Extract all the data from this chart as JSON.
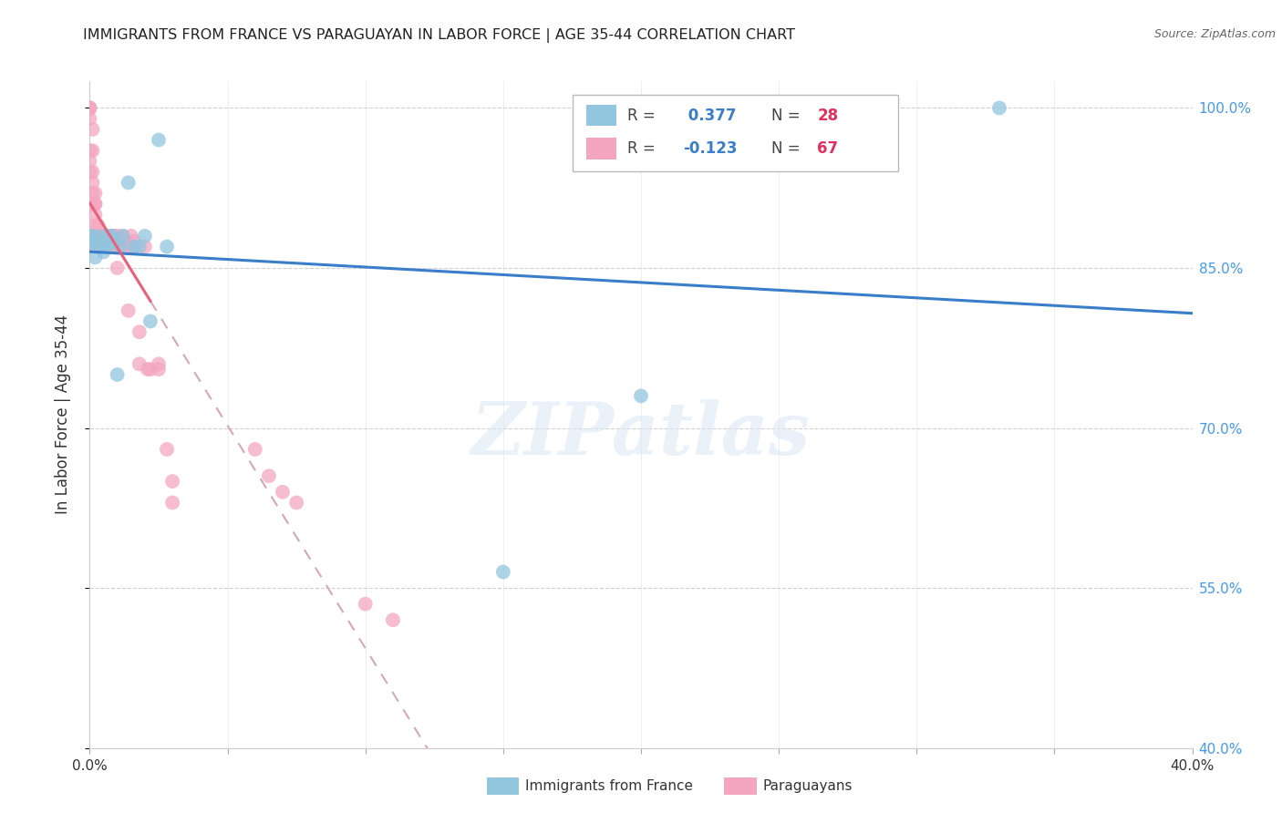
{
  "title": "IMMIGRANTS FROM FRANCE VS PARAGUAYAN IN LABOR FORCE | AGE 35-44 CORRELATION CHART",
  "source": "Source: ZipAtlas.com",
  "ylabel": "In Labor Force | Age 35-44",
  "xmin": 0.0,
  "xmax": 0.4,
  "ymin": 0.4,
  "ymax": 1.025,
  "yticks": [
    0.4,
    0.55,
    0.7,
    0.85,
    1.0
  ],
  "ytick_labels": [
    "40.0%",
    "55.0%",
    "70.0%",
    "85.0%",
    "100.0%"
  ],
  "xticks": [
    0.0,
    0.05,
    0.1,
    0.15,
    0.2,
    0.25,
    0.3,
    0.35,
    0.4
  ],
  "xtick_labels": [
    "0.0%",
    "",
    "",
    "",
    "",
    "",
    "",
    "",
    "40.0%"
  ],
  "france_color": "#92c5de",
  "paraguay_color": "#f4a6c0",
  "france_line_color": "#3a7dc9",
  "paraguay_line_solid_color": "#e8607a",
  "paraguay_line_dash_color": "#d4a8b8",
  "watermark": "ZIPatlas",
  "france_x": [
    0.001,
    0.001,
    0.002,
    0.003,
    0.004,
    0.005,
    0.006,
    0.007,
    0.008,
    0.01,
    0.011,
    0.012,
    0.014,
    0.016,
    0.018,
    0.02,
    0.022,
    0.025,
    0.028,
    0.15,
    0.2,
    0.33,
    0.001,
    0.002,
    0.003,
    0.005,
    0.007,
    0.009
  ],
  "france_y": [
    0.88,
    0.875,
    0.87,
    0.875,
    0.87,
    0.88,
    0.87,
    0.875,
    0.88,
    0.75,
    0.87,
    0.88,
    0.93,
    0.87,
    0.87,
    0.88,
    0.8,
    0.97,
    0.87,
    0.565,
    0.73,
    1.0,
    0.88,
    0.86,
    0.875,
    0.865,
    0.88,
    0.875
  ],
  "paraguay_x": [
    0.0,
    0.0,
    0.0,
    0.0,
    0.0,
    0.0,
    0.0,
    0.001,
    0.001,
    0.001,
    0.001,
    0.001,
    0.001,
    0.002,
    0.002,
    0.002,
    0.002,
    0.002,
    0.002,
    0.002,
    0.003,
    0.003,
    0.003,
    0.003,
    0.004,
    0.004,
    0.004,
    0.005,
    0.005,
    0.005,
    0.006,
    0.006,
    0.006,
    0.007,
    0.008,
    0.008,
    0.008,
    0.009,
    0.009,
    0.01,
    0.01,
    0.01,
    0.01,
    0.012,
    0.012,
    0.013,
    0.014,
    0.015,
    0.015,
    0.016,
    0.016,
    0.018,
    0.018,
    0.02,
    0.021,
    0.022,
    0.025,
    0.025,
    0.028,
    0.03,
    0.03,
    0.06,
    0.065,
    0.07,
    0.075,
    0.1,
    0.11
  ],
  "paraguay_y": [
    1.0,
    1.0,
    1.0,
    0.99,
    0.96,
    0.95,
    0.94,
    0.98,
    0.96,
    0.94,
    0.93,
    0.92,
    0.91,
    0.92,
    0.91,
    0.91,
    0.9,
    0.89,
    0.88,
    0.87,
    0.89,
    0.88,
    0.88,
    0.87,
    0.88,
    0.88,
    0.87,
    0.88,
    0.875,
    0.87,
    0.87,
    0.875,
    0.875,
    0.87,
    0.88,
    0.875,
    0.87,
    0.88,
    0.87,
    0.88,
    0.875,
    0.87,
    0.85,
    0.88,
    0.87,
    0.875,
    0.81,
    0.88,
    0.87,
    0.875,
    0.87,
    0.79,
    0.76,
    0.87,
    0.755,
    0.755,
    0.755,
    0.76,
    0.68,
    0.65,
    0.63,
    0.68,
    0.655,
    0.64,
    0.63,
    0.535,
    0.52
  ]
}
